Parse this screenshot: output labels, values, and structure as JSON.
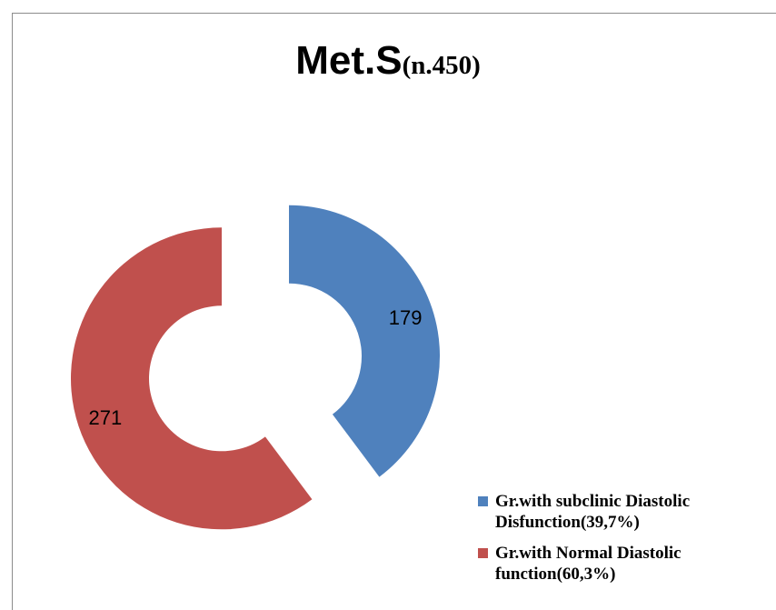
{
  "chart_data": {
    "type": "pie",
    "variant": "donut",
    "title": "Met.S",
    "subtitle": "(n.450)",
    "slices": [
      {
        "label": "Gr.with subclinic Diastolic Disfunction(39,7%)",
        "value": 179,
        "color": "#4f81bd"
      },
      {
        "label": "Gr.with Normal Diastolic function(60,3%)",
        "value": 271,
        "color": "#c0504d"
      }
    ],
    "legend_position": "bottom-right",
    "exploded": true
  }
}
